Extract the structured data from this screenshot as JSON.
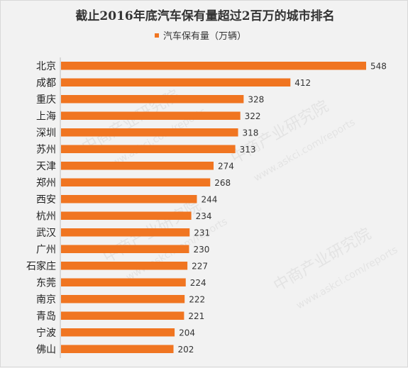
{
  "chart_data": {
    "type": "bar",
    "orientation": "horizontal",
    "title": "截止2016年底汽车保有量超过2百万的城市排名",
    "legend": "汽车保有量（万辆）",
    "legend_position": "top",
    "color": "#F07521",
    "grid": false,
    "categories": [
      "北京",
      "成都",
      "重庆",
      "上海",
      "深圳",
      "苏州",
      "天津",
      "郑州",
      "西安",
      "杭州",
      "武汉",
      "广州",
      "石家庄",
      "东莞",
      "南京",
      "青岛",
      "宁波",
      "佛山"
    ],
    "series": [
      {
        "name": "汽车保有量（万辆）",
        "values": [
          548,
          412,
          328,
          322,
          318,
          313,
          274,
          268,
          244,
          234,
          231,
          230,
          227,
          224,
          222,
          221,
          204,
          202
        ]
      }
    ],
    "xlim": [
      0,
      548
    ]
  },
  "watermark": {
    "text": "中商产业研究院",
    "url": "www.askci.com/reports"
  }
}
